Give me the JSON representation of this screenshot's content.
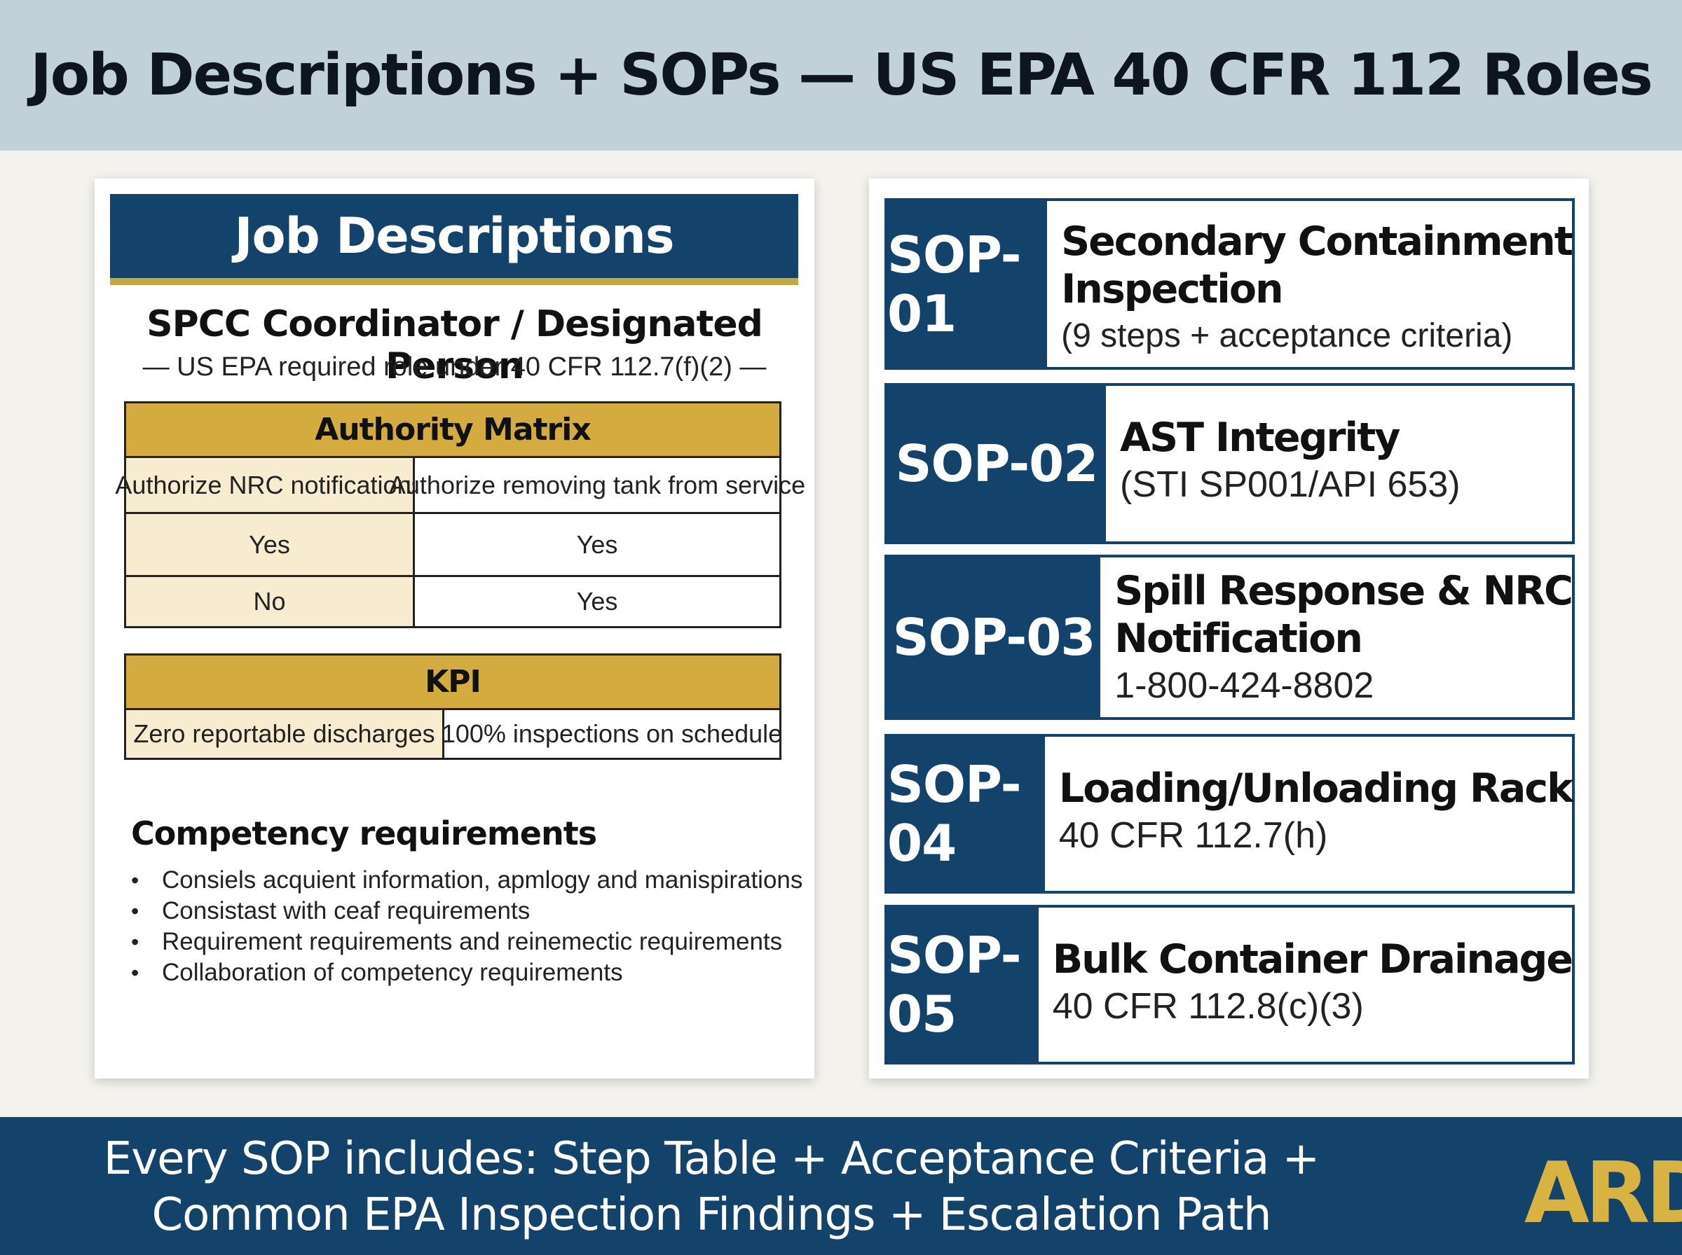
{
  "page_title": "Job Descriptions + SOPs — US EPA 40 CFR 112 Roles",
  "job_descriptions": {
    "banner": "Job Descriptions",
    "role_title": "SPCC Coordinator / Designated Person",
    "role_subtitle": "— US EPA required role under 40 CFR 112.7(f)(2) —",
    "authority_matrix": {
      "title": "Authority Matrix",
      "headers": [
        "Authorize NRC notifications",
        "Authorize removing tank from service"
      ],
      "rows": [
        [
          "Yes",
          "Yes"
        ],
        [
          "No",
          "Yes"
        ]
      ]
    },
    "kpi": {
      "title": "KPI",
      "items": [
        "Zero reportable discharges",
        "100% inspections on schedule"
      ]
    },
    "competency": {
      "title": "Competency requirements",
      "items": [
        "Consiels acquient information, apmlogy and manispirations",
        "Consistast with ceaf requirements",
        "Requirement requirements and reinemectic requirements",
        "Collaboration of competency requirements"
      ]
    }
  },
  "sops": [
    {
      "id": "SOP-01",
      "title_line1": "Secondary Containment",
      "title_line2": "Inspection",
      "subtitle": "(9 steps + acceptance criteria)"
    },
    {
      "id": "SOP-02",
      "title_line1": "AST Integrity",
      "subtitle": "(STI SP001/API 653)"
    },
    {
      "id": "SOP-03",
      "title_line1": "Spill Response & NRC",
      "title_line2": "Notification",
      "subtitle": "1-800-424-8802"
    },
    {
      "id": "SOP-04",
      "title_line1": "Loading/Unloading Rack",
      "subtitle": "40 CFR 112.7(h)"
    },
    {
      "id": "SOP-05",
      "title_line1": "Bulk Container Drainage",
      "subtitle": "40 CFR 112.8(c)(3)"
    }
  ],
  "footer": {
    "line1": "Every SOP includes: Step Table + Acceptance Criteria +",
    "line2": "Common EPA Inspection Findings + Escalation Path",
    "logo": "ARD"
  },
  "colors": {
    "navy": "#13436b",
    "gold": "#d3ab3e",
    "header_bg": "#c2d0da"
  }
}
